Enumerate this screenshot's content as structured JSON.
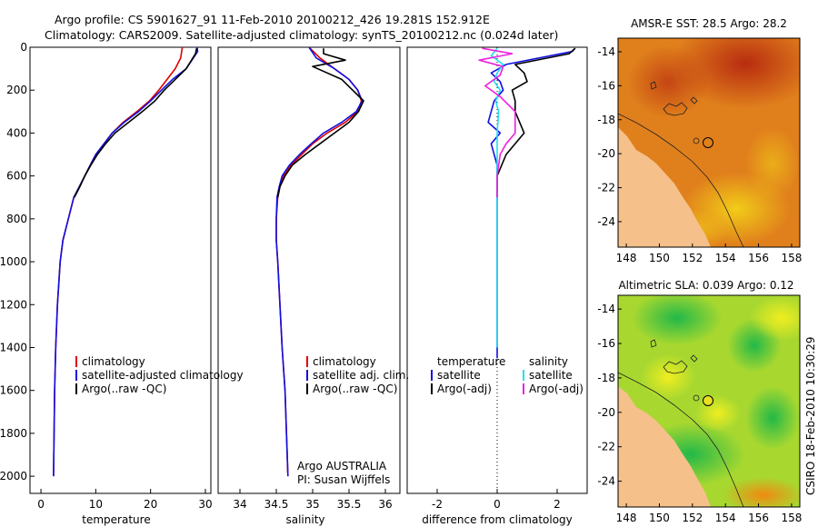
{
  "header": {
    "line1": "Argo profile: CS 5901627_91 11-Feb-2010 20100212_426 19.281S 152.912E",
    "line2": "Climatology: CARS2009. Satellite-adjusted climatology: synTS_20100212.nc (0.024d later)"
  },
  "credit": "CSIRO 18-Feb-2010 10:30:29",
  "colors": {
    "red": "#e00000",
    "blue": "#1010e0",
    "black": "#000000",
    "cyan": "#20e0f0",
    "magenta": "#f020e0"
  },
  "chart_data": [
    {
      "type": "line",
      "id": "temperature",
      "xlabel": "temperature",
      "ylabel": "",
      "xlim": [
        -2,
        31
      ],
      "ylim": [
        0,
        2080
      ],
      "xticks": [
        0,
        10,
        20,
        30
      ],
      "yticks": [
        0,
        200,
        400,
        600,
        800,
        1000,
        1200,
        1400,
        1600,
        1800,
        2000
      ],
      "series": [
        {
          "name": "climatology",
          "color": "red",
          "x": [
            25.8,
            25.5,
            24.5,
            23,
            21.5,
            19.8,
            17.5,
            15,
            13,
            11.5,
            10,
            9,
            8,
            7,
            6,
            5,
            4,
            3.5,
            3,
            2.7,
            2.5,
            2.3
          ],
          "y": [
            0,
            50,
            100,
            150,
            200,
            250,
            300,
            350,
            400,
            450,
            500,
            550,
            600,
            650,
            700,
            800,
            900,
            1000,
            1200,
            1400,
            1600,
            2000
          ]
        },
        {
          "name": "satellite-adjusted climatology",
          "color": "blue",
          "x": [
            28.5,
            28.6,
            26.5,
            24,
            22,
            20,
            17.8,
            15.2,
            13,
            11.5,
            10,
            9,
            8,
            7,
            6,
            5,
            4,
            3.5,
            3,
            2.7,
            2.5,
            2.3
          ],
          "y": [
            0,
            20,
            100,
            150,
            200,
            250,
            300,
            350,
            400,
            450,
            500,
            550,
            600,
            650,
            700,
            800,
            900,
            1000,
            1200,
            1400,
            1600,
            2000
          ]
        },
        {
          "name": "Argo(..raw -QC)",
          "color": "black",
          "x": [
            28.4,
            28.2,
            26.5,
            24.5,
            22.5,
            20.8,
            18.5,
            16,
            13.5,
            11.8,
            10.3,
            9.1,
            8,
            7.1,
            6.1
          ],
          "y": [
            5,
            30,
            100,
            150,
            200,
            250,
            300,
            350,
            400,
            450,
            500,
            550,
            600,
            650,
            700
          ]
        }
      ],
      "legend": [
        "climatology",
        "satellite-adjusted climatology",
        "Argo(..raw -QC)"
      ]
    },
    {
      "type": "line",
      "id": "salinity",
      "xlabel": "salinity",
      "xlim": [
        33.7,
        36.2
      ],
      "ylim": [
        0,
        2080
      ],
      "xticks": [
        34,
        34.5,
        35,
        35.5,
        36
      ],
      "series": [
        {
          "name": "climatology",
          "color": "red",
          "x": [
            34.95,
            35.1,
            35.3,
            35.5,
            35.62,
            35.67,
            35.62,
            35.45,
            35.2,
            35.0,
            34.85,
            34.7,
            34.6,
            34.55,
            34.52,
            34.5,
            34.5,
            34.52,
            34.55,
            34.58,
            34.62,
            34.66
          ],
          "y": [
            0,
            50,
            100,
            150,
            200,
            250,
            300,
            350,
            400,
            450,
            500,
            550,
            600,
            650,
            700,
            800,
            900,
            1000,
            1200,
            1400,
            1600,
            2000
          ]
        },
        {
          "name": "satellite adj. clim.",
          "color": "blue",
          "x": [
            34.95,
            35.05,
            35.3,
            35.5,
            35.62,
            35.68,
            35.6,
            35.4,
            35.15,
            34.98,
            34.82,
            34.68,
            34.58,
            34.54,
            34.51,
            34.5,
            34.5,
            34.52,
            34.55,
            34.58,
            34.62,
            34.66
          ],
          "y": [
            0,
            50,
            100,
            150,
            200,
            250,
            300,
            350,
            400,
            450,
            500,
            550,
            600,
            650,
            700,
            800,
            900,
            1000,
            1200,
            1400,
            1600,
            2000
          ]
        },
        {
          "name": "Argo(..raw -QC)",
          "color": "black",
          "x": [
            35.15,
            35.15,
            35.45,
            35.0,
            35.4,
            35.55,
            35.7,
            35.63,
            35.5,
            35.3,
            35.1,
            34.9,
            34.72,
            34.62,
            34.55,
            34.52
          ],
          "y": [
            5,
            30,
            60,
            90,
            150,
            200,
            250,
            300,
            350,
            400,
            450,
            500,
            550,
            600,
            650,
            700
          ]
        }
      ],
      "legend": [
        "climatology",
        "satellite adj. clim.",
        "Argo(..raw -QC)"
      ]
    },
    {
      "type": "line",
      "id": "difference",
      "xlabel": "difference from climatology",
      "xlim": [
        -3,
        3
      ],
      "ylim": [
        0,
        2080
      ],
      "xticks": [
        -2,
        0,
        2
      ],
      "series": [
        {
          "name": "temperature satellite",
          "color": "blue",
          "x": [
            2.6,
            2.5,
            0.3,
            -0.2,
            0.1,
            0.2,
            -0.1,
            -0.2,
            -0.3,
            0.1,
            -0.2,
            -0.1,
            0,
            0,
            0,
            0,
            0,
            0,
            0,
            0
          ],
          "y": [
            5,
            20,
            80,
            120,
            160,
            200,
            250,
            300,
            350,
            400,
            450,
            500,
            550,
            600,
            700,
            800,
            1000,
            1200,
            1400,
            1450
          ]
        },
        {
          "name": "temperature Argo(-adj)",
          "color": "black",
          "x": [
            2.6,
            2.4,
            0.6,
            0.9,
            1.0,
            0.5,
            0.6,
            0.6,
            0.9,
            0.3,
            0,
            0
          ],
          "y": [
            5,
            30,
            80,
            120,
            160,
            200,
            250,
            300,
            400,
            500,
            600,
            700
          ]
        },
        {
          "name": "salinity satellite",
          "color": "cyan",
          "x": [
            0,
            -0.2,
            0.2,
            0,
            -0.1,
            0.1,
            -0.05,
            0.05,
            0,
            0,
            0,
            0,
            0,
            0
          ],
          "y": [
            5,
            40,
            80,
            120,
            160,
            200,
            250,
            300,
            400,
            500,
            700,
            900,
            1200,
            1400
          ]
        },
        {
          "name": "salinity Argo(-adj)",
          "color": "magenta",
          "x": [
            -0.5,
            0.5,
            -0.6,
            0.2,
            0.1,
            -0.4,
            0.1,
            0.6,
            0.6,
            0.3,
            0.1,
            0,
            0
          ],
          "y": [
            5,
            30,
            60,
            90,
            130,
            180,
            230,
            300,
            400,
            450,
            500,
            600,
            700
          ]
        }
      ],
      "legend_left_title": "temperature",
      "legend_right_title": "salinity",
      "legend_left": [
        "satellite",
        "Argo(-adj)"
      ],
      "legend_right": [
        "satellite",
        "Argo(-adj)"
      ],
      "annotation": [
        "Argo AUSTRALIA",
        "PI: Susan Wijffels"
      ]
    },
    {
      "type": "heatmap",
      "id": "sst-map",
      "title": "AMSR-E SST: 28.5 Argo: 28.2",
      "xlim": [
        147.5,
        158.5
      ],
      "ylim": [
        -25.5,
        -13.2
      ],
      "xticks": [
        148,
        150,
        152,
        154,
        156,
        158
      ],
      "yticks": [
        -14,
        -16,
        -18,
        -20,
        -22,
        -24
      ]
    },
    {
      "type": "heatmap",
      "id": "sla-map",
      "title": "Altimetric SLA: 0.039 Argo: 0.12",
      "xlim": [
        147.5,
        158.5
      ],
      "ylim": [
        -25.5,
        -13.2
      ],
      "xticks": [
        148,
        150,
        152,
        154,
        156,
        158
      ],
      "yticks": [
        -14,
        -16,
        -18,
        -20,
        -22,
        -24
      ]
    }
  ]
}
